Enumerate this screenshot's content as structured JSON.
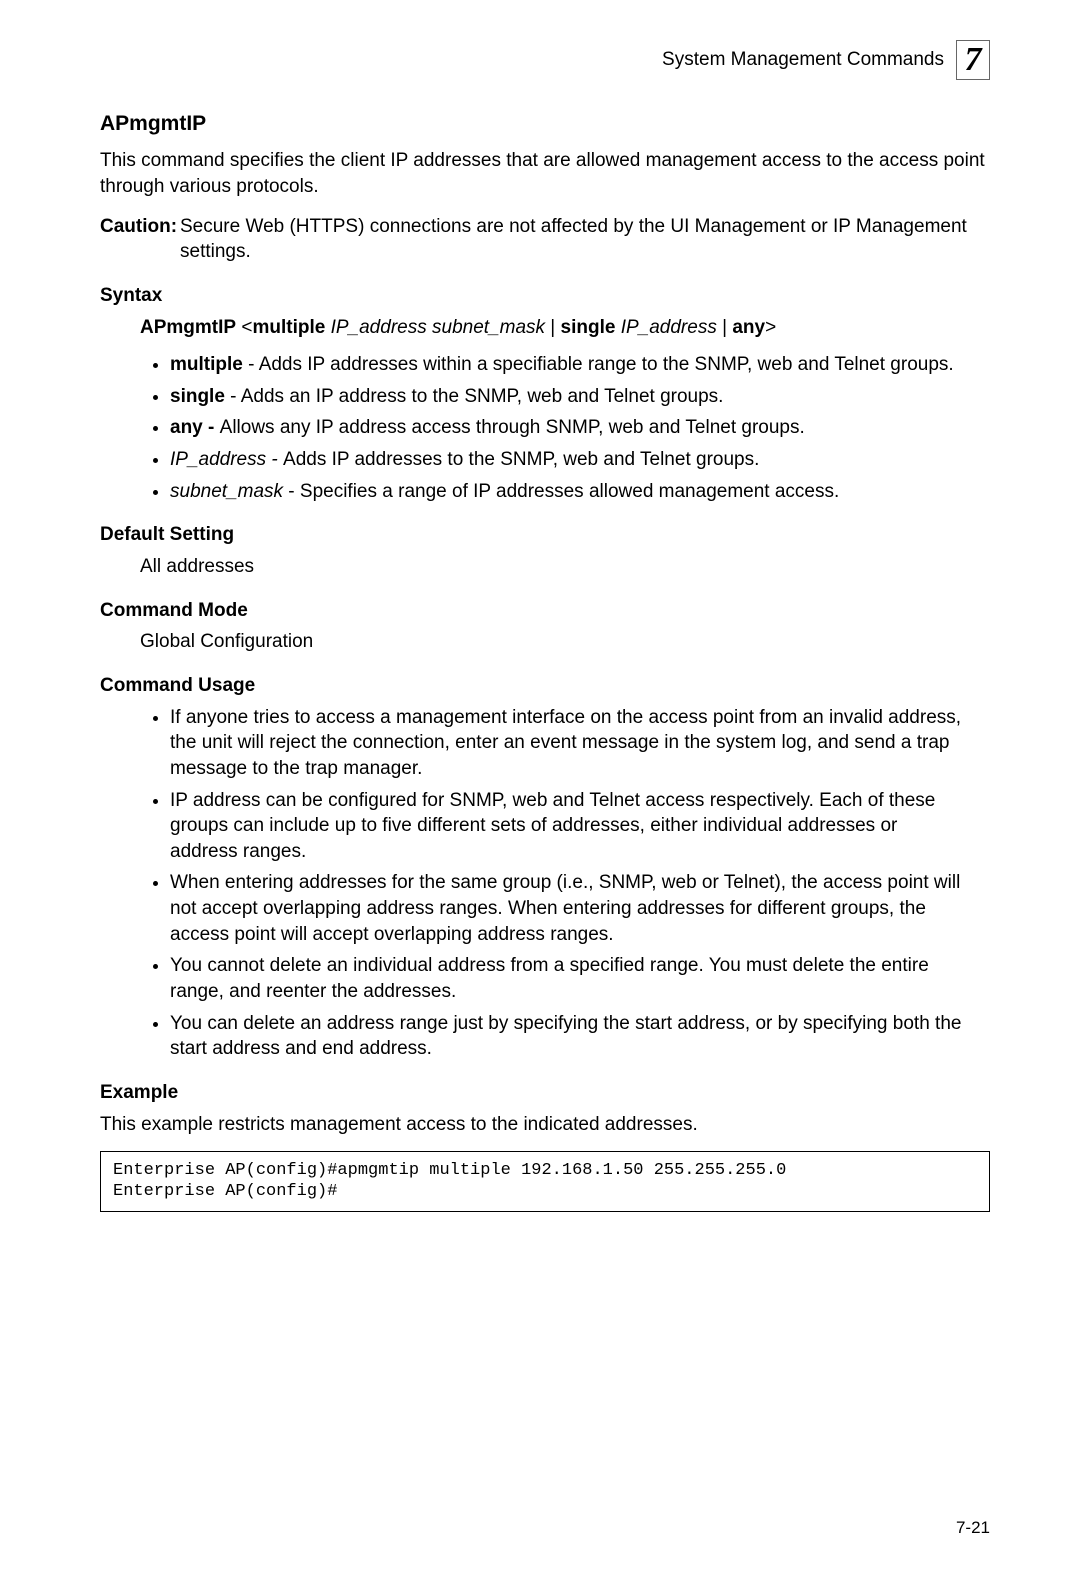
{
  "header": {
    "breadcrumb": "System Management Commands",
    "chapter_number": "7"
  },
  "title": "APmgmtIP",
  "intro": "This command specifies the client IP addresses that are allowed management access to the access point through various protocols.",
  "caution": {
    "label": "Caution:",
    "text": "Secure Web (HTTPS) connections are not affected by the UI Management or IP Management settings."
  },
  "syntax": {
    "heading": "Syntax",
    "line_parts": {
      "cmd": "APmgmtIP",
      "lt": "<",
      "multiple": "multiple",
      "ip": "IP_address",
      "subnet": "subnet_mask",
      "pipe1": " | ",
      "single": "single",
      "pipe2": " | ",
      "any": "any",
      "gt": ">"
    },
    "items": [
      {
        "term": "multiple",
        "term_style": "b",
        "sep": " - ",
        "desc": "Adds IP addresses within a specifiable range to the SNMP, web and Telnet groups."
      },
      {
        "term": "single",
        "term_style": "b",
        "sep": " - ",
        "desc": "Adds an IP address to the SNMP, web and Telnet groups."
      },
      {
        "term": "any",
        "term_style": "b",
        "sep": " - ",
        "sep_style": "b",
        "desc": "Allows any IP address access through SNMP, web and Telnet groups."
      },
      {
        "term": "IP_address",
        "term_style": "i",
        "sep": " - ",
        "sep_style": "i",
        "desc": "Adds IP addresses to the SNMP, web and Telnet groups."
      },
      {
        "term": "subnet_mask",
        "term_style": "i",
        "sep": " - ",
        "desc": "Specifies a range of IP addresses allowed management access."
      }
    ]
  },
  "default_setting": {
    "heading": "Default Setting",
    "text": "All addresses"
  },
  "command_mode": {
    "heading": "Command Mode",
    "text": "Global Configuration"
  },
  "command_usage": {
    "heading": "Command Usage",
    "items": [
      "If anyone tries to access a management interface on the access point from an invalid address, the unit will reject the connection, enter an event message in the system log, and send a trap message to the trap manager.",
      "IP address can be configured for SNMP, web and Telnet access respectively. Each of these groups can include up to five different sets of addresses, either individual addresses or address ranges.",
      "When entering addresses for the same group (i.e., SNMP, web or Telnet), the access point will not accept overlapping address ranges. When entering addresses for different groups, the access point will accept overlapping address ranges.",
      "You cannot delete an individual address from a specified range. You must delete the entire range, and reenter the addresses.",
      "You can delete an address range just by specifying the start address, or by specifying both the start address and end address."
    ]
  },
  "example": {
    "heading": "Example",
    "text": "This example restricts management access to the indicated addresses.",
    "code": "Enterprise AP(config)#apmgmtip multiple 192.168.1.50 255.255.255.0\nEnterprise AP(config)#"
  },
  "pagenum": "7-21"
}
